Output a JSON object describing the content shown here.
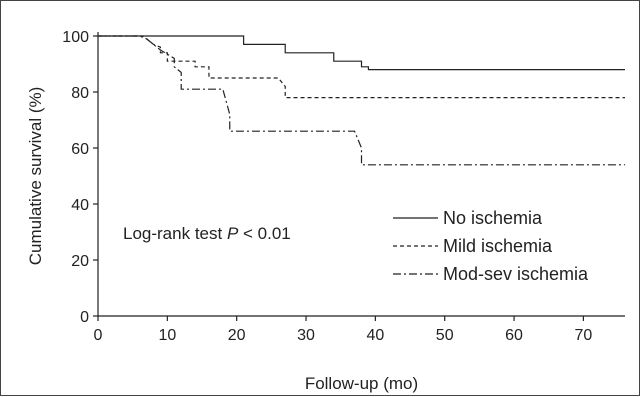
{
  "chart_data": {
    "type": "line",
    "xlabel": "Follow-up (mo)",
    "ylabel": "Cumulative survival (%)",
    "xlim": [
      0,
      76
    ],
    "ylim": [
      0,
      100
    ],
    "x_ticks": [
      0,
      10,
      20,
      30,
      40,
      50,
      60,
      70
    ],
    "y_ticks": [
      0,
      20,
      40,
      60,
      80,
      100
    ],
    "grid": false,
    "legend_position": "bottom-right",
    "annotation": {
      "prefix": "Log-rank test ",
      "italic": "P",
      "suffix": " < 0.01"
    },
    "series": [
      {
        "name": "No ischemia",
        "style": "solid",
        "points": [
          [
            0,
            100
          ],
          [
            21,
            100
          ],
          [
            21,
            97
          ],
          [
            27,
            97
          ],
          [
            27,
            94
          ],
          [
            34,
            94
          ],
          [
            34,
            91
          ],
          [
            38,
            91
          ],
          [
            38,
            89
          ],
          [
            39,
            89
          ],
          [
            39,
            88
          ],
          [
            76,
            88
          ]
        ]
      },
      {
        "name": "Mild ischemia",
        "style": "dashed",
        "points": [
          [
            0,
            100
          ],
          [
            6.5,
            100
          ],
          [
            7,
            99
          ],
          [
            8,
            97
          ],
          [
            9,
            96
          ],
          [
            9,
            94
          ],
          [
            10,
            94
          ],
          [
            10,
            91
          ],
          [
            14,
            91
          ],
          [
            14,
            89
          ],
          [
            16,
            89
          ],
          [
            16,
            85
          ],
          [
            26,
            85
          ],
          [
            27,
            82
          ],
          [
            27,
            78
          ],
          [
            76,
            78
          ]
        ]
      },
      {
        "name": "Mod-sev ischemia",
        "style": "dashdot",
        "points": [
          [
            0,
            100
          ],
          [
            6,
            100
          ],
          [
            7,
            99
          ],
          [
            8,
            97
          ],
          [
            9,
            95
          ],
          [
            11,
            92
          ],
          [
            11,
            89
          ],
          [
            12,
            87
          ],
          [
            12,
            81
          ],
          [
            18,
            81
          ],
          [
            19,
            72
          ],
          [
            19,
            66
          ],
          [
            37,
            66
          ],
          [
            38,
            60
          ],
          [
            38,
            54
          ],
          [
            76,
            54
          ]
        ]
      }
    ]
  }
}
